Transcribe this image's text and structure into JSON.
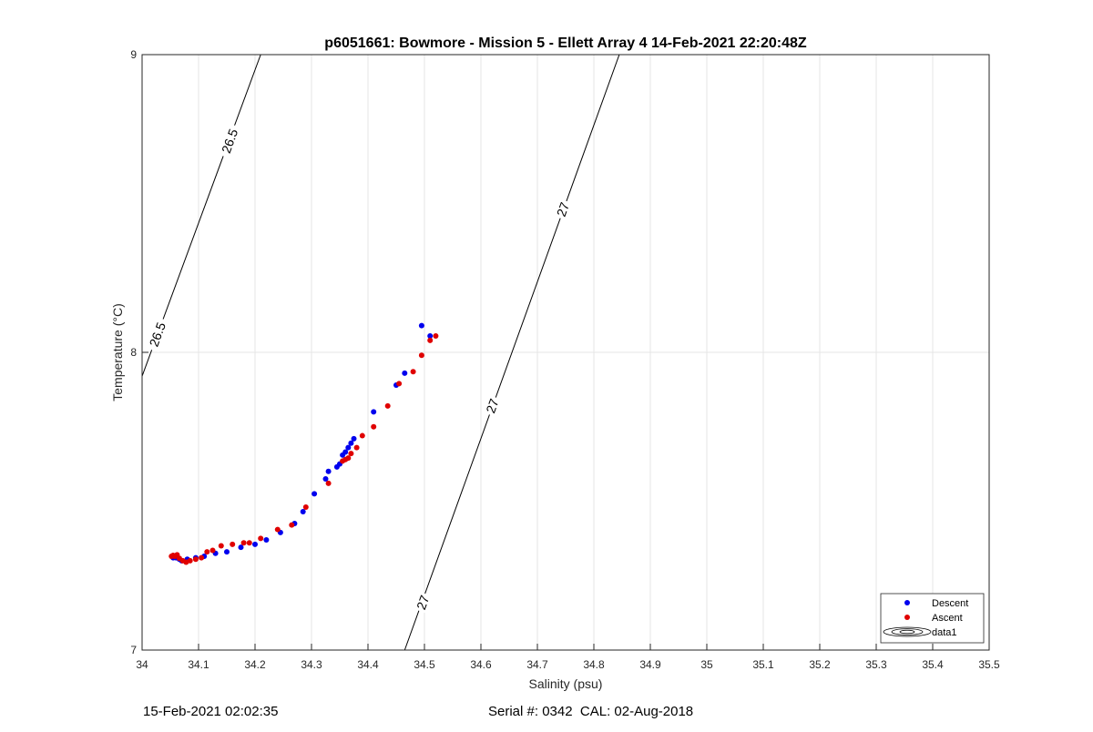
{
  "chart_data": {
    "type": "scatter",
    "title": "p6051661: Bowmore - Mission 5 - Ellett Array 4 14-Feb-2021 22:20:48Z",
    "xlabel": "Salinity (psu)",
    "ylabel": "Temperature (°C)",
    "xlim": [
      34,
      35.5
    ],
    "ylim": [
      7,
      9
    ],
    "xticks": [
      "34",
      "34.1",
      "34.2",
      "34.3",
      "34.4",
      "34.5",
      "34.6",
      "34.7",
      "34.8",
      "34.9",
      "35",
      "35.1",
      "35.2",
      "35.3",
      "35.4",
      "35.5"
    ],
    "yticks": [
      "7",
      "8",
      "9"
    ],
    "grid": true,
    "legend": {
      "placement": "bottom-right",
      "entries": [
        "Descent",
        "Ascent",
        "data1"
      ]
    },
    "contours": [
      {
        "level": "26.5",
        "points": [
          [
            34.0,
            7.92
          ],
          [
            34.21,
            9.0
          ]
        ],
        "labels": [
          [
            34.027,
            8.06
          ],
          [
            34.155,
            8.71
          ]
        ]
      },
      {
        "level": "27",
        "points": [
          [
            34.465,
            7.0
          ],
          [
            34.845,
            9.0
          ]
        ],
        "labels": [
          [
            34.497,
            7.16
          ],
          [
            34.62,
            7.82
          ],
          [
            34.745,
            8.48
          ]
        ]
      }
    ],
    "series": [
      {
        "name": "Descent",
        "color": "#0000ee",
        "x": [
          34.055,
          34.06,
          34.066,
          34.07,
          34.08,
          34.095,
          34.11,
          34.13,
          34.15,
          34.175,
          34.2,
          34.22,
          34.245,
          34.27,
          34.285,
          34.305,
          34.325,
          34.33,
          34.345,
          34.35,
          34.355,
          34.36,
          34.365,
          34.37,
          34.375,
          34.41,
          34.45,
          34.465,
          34.495,
          34.51
        ],
        "y": [
          7.31,
          7.31,
          7.305,
          7.3,
          7.305,
          7.31,
          7.315,
          7.325,
          7.33,
          7.345,
          7.355,
          7.37,
          7.395,
          7.425,
          7.465,
          7.525,
          7.575,
          7.6,
          7.615,
          7.625,
          7.655,
          7.665,
          7.68,
          7.695,
          7.71,
          7.8,
          7.89,
          7.93,
          8.09,
          8.055
        ]
      },
      {
        "name": "Ascent",
        "color": "#e00000",
        "x": [
          34.052,
          34.055,
          34.058,
          34.062,
          34.066,
          34.072,
          34.078,
          34.085,
          34.095,
          34.105,
          34.115,
          34.125,
          34.14,
          34.16,
          34.18,
          34.19,
          34.21,
          34.24,
          34.265,
          34.29,
          34.33,
          34.355,
          34.36,
          34.365,
          34.37,
          34.38,
          34.39,
          34.41,
          34.435,
          34.455,
          34.48,
          34.495,
          34.51,
          34.52
        ],
        "y": [
          7.315,
          7.318,
          7.315,
          7.32,
          7.308,
          7.3,
          7.295,
          7.3,
          7.305,
          7.31,
          7.33,
          7.335,
          7.35,
          7.355,
          7.36,
          7.36,
          7.375,
          7.405,
          7.42,
          7.48,
          7.56,
          7.635,
          7.64,
          7.645,
          7.66,
          7.68,
          7.72,
          7.75,
          7.82,
          7.895,
          7.935,
          7.99,
          8.04,
          8.055
        ]
      }
    ]
  },
  "footer": {
    "left": "15-Feb-2021 02:02:35",
    "right": "Serial #: 0342  CAL: 02-Aug-2018"
  }
}
